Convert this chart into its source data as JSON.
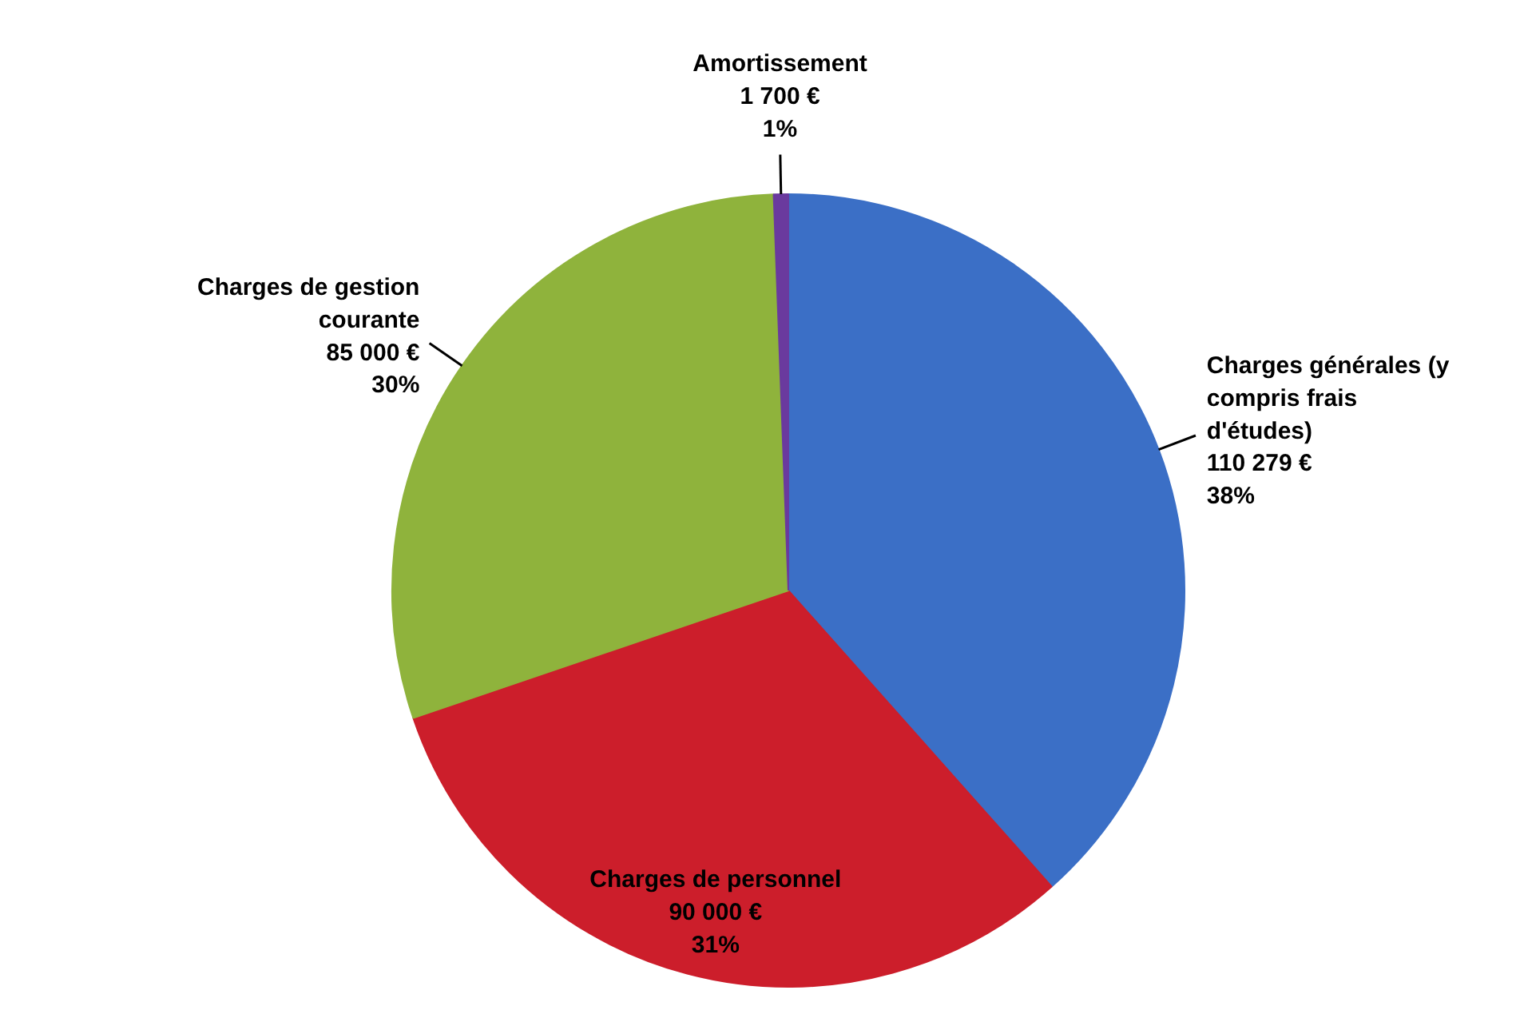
{
  "chart_data": {
    "type": "pie",
    "categories": [
      "Charges générales (y compris frais d'études)",
      "Charges de personnel",
      "Charges de gestion courante",
      "Amortissement"
    ],
    "values": [
      110279,
      90000,
      85000,
      1700
    ],
    "colors": [
      "#3b6fc6",
      "#cc1e2b",
      "#8fb33c",
      "#6a3a9e"
    ],
    "value_labels": [
      "110 279 €\n38%",
      "90 000 €\n31%",
      "85 000 €\n30%",
      "1 700 €\n1%"
    ],
    "legend": false
  }
}
